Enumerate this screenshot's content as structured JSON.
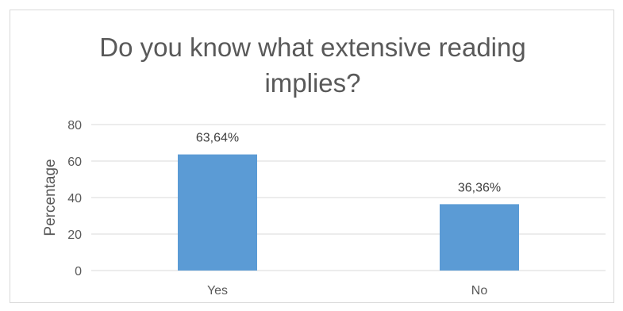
{
  "chart_data": {
    "type": "bar",
    "title_line1": "Do you know what extensive reading",
    "title_line2": "implies?",
    "ylabel": "Percentage",
    "xlabel": "",
    "categories": [
      "Yes",
      "No"
    ],
    "values": [
      63.64,
      36.36
    ],
    "data_labels": [
      "63,64%",
      "36,36%"
    ],
    "ylim": [
      0,
      80
    ],
    "yticks": [
      0,
      20,
      40,
      60,
      80
    ],
    "grid": true,
    "legend": "none",
    "bar_color": "#5b9bd5",
    "grid_color": "#d9d9d9"
  }
}
